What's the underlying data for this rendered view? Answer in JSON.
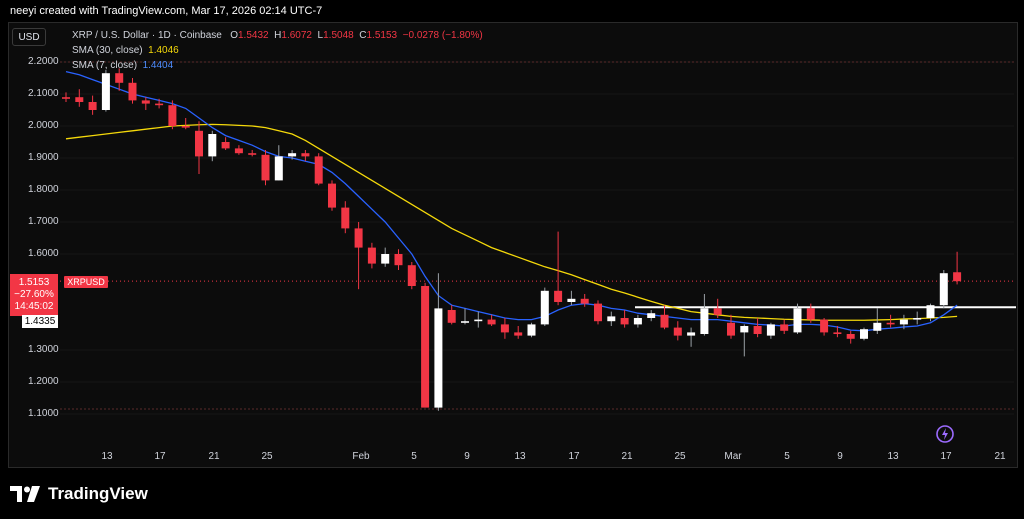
{
  "header": {
    "attribution": "neeyi created with TradingView.com, Mar 17, 2026 02:14 UTC-7"
  },
  "currency_button": "USD",
  "legend": {
    "symbol": "XRP / U.S. Dollar · 1D · Coinbase",
    "o_label": "O",
    "o": "1.5432",
    "h_label": "H",
    "h": "1.6072",
    "l_label": "L",
    "l": "1.5048",
    "c_label": "C",
    "c": "1.5153",
    "change": "−0.0278 (−1.80%)",
    "sma30_label": "SMA (30, close)",
    "sma30_value": "1.4046",
    "sma7_label": "SMA (7, close)",
    "sma7_value": "1.4404"
  },
  "price_tag": {
    "price": "1.5153",
    "pct": "−27.60%",
    "countdown": "14:45:02",
    "symbol": "XRPUSD"
  },
  "support_tag": "1.4335",
  "brand": "TradingView",
  "colors": {
    "up": "#ffffff",
    "down": "#f23645",
    "sma30": "#f5d90a",
    "sma7": "#2962ff",
    "support": "#ffffff"
  },
  "chart_data": {
    "type": "candlestick",
    "y_ticks": [
      "2.2000",
      "2.1000",
      "2.0000",
      "1.9000",
      "1.8000",
      "1.7000",
      "1.6000",
      "1.3000",
      "1.2000",
      "1.1000"
    ],
    "x_ticks": [
      "13",
      "17",
      "21",
      "25",
      "Feb",
      "5",
      "9",
      "13",
      "17",
      "21",
      "25",
      "Mar",
      "5",
      "9",
      "13",
      "17",
      "21"
    ],
    "ylim": [
      1.09,
      2.25
    ],
    "support_level": 1.4335,
    "candles": [
      {
        "o": 2.09,
        "h": 2.105,
        "l": 2.075,
        "c": 2.085
      },
      {
        "o": 2.09,
        "h": 2.115,
        "l": 2.06,
        "c": 2.075
      },
      {
        "o": 2.075,
        "h": 2.095,
        "l": 2.035,
        "c": 2.05
      },
      {
        "o": 2.05,
        "h": 2.175,
        "l": 2.045,
        "c": 2.165
      },
      {
        "o": 2.165,
        "h": 2.18,
        "l": 2.11,
        "c": 2.135
      },
      {
        "o": 2.135,
        "h": 2.15,
        "l": 2.07,
        "c": 2.08
      },
      {
        "o": 2.08,
        "h": 2.09,
        "l": 2.05,
        "c": 2.07
      },
      {
        "o": 2.07,
        "h": 2.085,
        "l": 2.055,
        "c": 2.065
      },
      {
        "o": 2.065,
        "h": 2.08,
        "l": 1.99,
        "c": 2.0
      },
      {
        "o": 2.0,
        "h": 2.025,
        "l": 1.99,
        "c": 1.995
      },
      {
        "o": 1.985,
        "h": 2.015,
        "l": 1.85,
        "c": 1.905
      },
      {
        "o": 1.905,
        "h": 1.985,
        "l": 1.89,
        "c": 1.975
      },
      {
        "o": 1.95,
        "h": 1.965,
        "l": 1.925,
        "c": 1.93
      },
      {
        "o": 1.93,
        "h": 1.94,
        "l": 1.91,
        "c": 1.915
      },
      {
        "o": 1.915,
        "h": 1.925,
        "l": 1.905,
        "c": 1.91
      },
      {
        "o": 1.91,
        "h": 1.925,
        "l": 1.815,
        "c": 1.83
      },
      {
        "o": 1.83,
        "h": 1.94,
        "l": 1.83,
        "c": 1.905
      },
      {
        "o": 1.905,
        "h": 1.925,
        "l": 1.895,
        "c": 1.915
      },
      {
        "o": 1.915,
        "h": 1.925,
        "l": 1.89,
        "c": 1.905
      },
      {
        "o": 1.905,
        "h": 1.915,
        "l": 1.815,
        "c": 1.82
      },
      {
        "o": 1.82,
        "h": 1.83,
        "l": 1.735,
        "c": 1.745
      },
      {
        "o": 1.745,
        "h": 1.765,
        "l": 1.665,
        "c": 1.68
      },
      {
        "o": 1.68,
        "h": 1.7,
        "l": 1.49,
        "c": 1.62
      },
      {
        "o": 1.62,
        "h": 1.635,
        "l": 1.555,
        "c": 1.57
      },
      {
        "o": 1.57,
        "h": 1.62,
        "l": 1.56,
        "c": 1.6
      },
      {
        "o": 1.6,
        "h": 1.615,
        "l": 1.55,
        "c": 1.565
      },
      {
        "o": 1.565,
        "h": 1.575,
        "l": 1.49,
        "c": 1.5
      },
      {
        "o": 1.5,
        "h": 1.51,
        "l": 1.12,
        "c": 1.12
      },
      {
        "o": 1.12,
        "h": 1.54,
        "l": 1.11,
        "c": 1.43
      },
      {
        "o": 1.425,
        "h": 1.44,
        "l": 1.38,
        "c": 1.385
      },
      {
        "o": 1.385,
        "h": 1.43,
        "l": 1.38,
        "c": 1.39
      },
      {
        "o": 1.39,
        "h": 1.42,
        "l": 1.37,
        "c": 1.395
      },
      {
        "o": 1.395,
        "h": 1.41,
        "l": 1.375,
        "c": 1.38
      },
      {
        "o": 1.38,
        "h": 1.4,
        "l": 1.335,
        "c": 1.355
      },
      {
        "o": 1.355,
        "h": 1.375,
        "l": 1.335,
        "c": 1.345
      },
      {
        "o": 1.345,
        "h": 1.385,
        "l": 1.34,
        "c": 1.38
      },
      {
        "o": 1.38,
        "h": 1.495,
        "l": 1.375,
        "c": 1.485
      },
      {
        "o": 1.485,
        "h": 1.67,
        "l": 1.44,
        "c": 1.45
      },
      {
        "o": 1.45,
        "h": 1.485,
        "l": 1.44,
        "c": 1.46
      },
      {
        "o": 1.46,
        "h": 1.475,
        "l": 1.435,
        "c": 1.445
      },
      {
        "o": 1.445,
        "h": 1.455,
        "l": 1.38,
        "c": 1.39
      },
      {
        "o": 1.39,
        "h": 1.42,
        "l": 1.375,
        "c": 1.405
      },
      {
        "o": 1.4,
        "h": 1.425,
        "l": 1.37,
        "c": 1.38
      },
      {
        "o": 1.38,
        "h": 1.41,
        "l": 1.37,
        "c": 1.4
      },
      {
        "o": 1.4,
        "h": 1.425,
        "l": 1.39,
        "c": 1.415
      },
      {
        "o": 1.41,
        "h": 1.44,
        "l": 1.365,
        "c": 1.37
      },
      {
        "o": 1.37,
        "h": 1.39,
        "l": 1.33,
        "c": 1.345
      },
      {
        "o": 1.345,
        "h": 1.37,
        "l": 1.31,
        "c": 1.355
      },
      {
        "o": 1.35,
        "h": 1.475,
        "l": 1.345,
        "c": 1.43
      },
      {
        "o": 1.43,
        "h": 1.46,
        "l": 1.4,
        "c": 1.41
      },
      {
        "o": 1.385,
        "h": 1.41,
        "l": 1.335,
        "c": 1.345
      },
      {
        "o": 1.355,
        "h": 1.38,
        "l": 1.28,
        "c": 1.375
      },
      {
        "o": 1.375,
        "h": 1.4,
        "l": 1.34,
        "c": 1.35
      },
      {
        "o": 1.345,
        "h": 1.385,
        "l": 1.335,
        "c": 1.38
      },
      {
        "o": 1.38,
        "h": 1.395,
        "l": 1.35,
        "c": 1.36
      },
      {
        "o": 1.355,
        "h": 1.445,
        "l": 1.35,
        "c": 1.43
      },
      {
        "o": 1.43,
        "h": 1.445,
        "l": 1.385,
        "c": 1.395
      },
      {
        "o": 1.395,
        "h": 1.4,
        "l": 1.345,
        "c": 1.355
      },
      {
        "o": 1.355,
        "h": 1.375,
        "l": 1.34,
        "c": 1.35
      },
      {
        "o": 1.35,
        "h": 1.36,
        "l": 1.32,
        "c": 1.335
      },
      {
        "o": 1.335,
        "h": 1.37,
        "l": 1.33,
        "c": 1.365
      },
      {
        "o": 1.36,
        "h": 1.43,
        "l": 1.35,
        "c": 1.385
      },
      {
        "o": 1.385,
        "h": 1.41,
        "l": 1.37,
        "c": 1.38
      },
      {
        "o": 1.38,
        "h": 1.41,
        "l": 1.365,
        "c": 1.395
      },
      {
        "o": 1.395,
        "h": 1.42,
        "l": 1.38,
        "c": 1.4
      },
      {
        "o": 1.4,
        "h": 1.445,
        "l": 1.39,
        "c": 1.44
      },
      {
        "o": 1.44,
        "h": 1.55,
        "l": 1.43,
        "c": 1.54
      },
      {
        "o": 1.543,
        "h": 1.607,
        "l": 1.505,
        "c": 1.515
      }
    ],
    "sma30": [
      1.96,
      1.965,
      1.97,
      1.975,
      1.98,
      1.985,
      1.99,
      1.995,
      2.0,
      2.002,
      2.004,
      2.005,
      2.004,
      2.002,
      2.0,
      1.995,
      1.985,
      1.975,
      1.955,
      1.93,
      1.905,
      1.88,
      1.855,
      1.83,
      1.805,
      1.78,
      1.755,
      1.73,
      1.705,
      1.68,
      1.66,
      1.64,
      1.62,
      1.605,
      1.59,
      1.575,
      1.56,
      1.548,
      1.535,
      1.52,
      1.505,
      1.49,
      1.478,
      1.465,
      1.452,
      1.44,
      1.43,
      1.42,
      1.415,
      1.41,
      1.405,
      1.402,
      1.4,
      1.398,
      1.396,
      1.395,
      1.394,
      1.393,
      1.393,
      1.393,
      1.393,
      1.394,
      1.395,
      1.397,
      1.398,
      1.4,
      1.402,
      1.405
    ],
    "sma7": [
      2.17,
      2.16,
      2.145,
      2.13,
      2.115,
      2.1,
      2.09,
      2.08,
      2.07,
      2.055,
      2.025,
      1.995,
      1.97,
      1.955,
      1.94,
      1.92,
      1.905,
      1.9,
      1.89,
      1.88,
      1.855,
      1.82,
      1.78,
      1.74,
      1.7,
      1.65,
      1.6,
      1.53,
      1.47,
      1.44,
      1.43,
      1.42,
      1.41,
      1.4,
      1.395,
      1.395,
      1.405,
      1.425,
      1.44,
      1.445,
      1.44,
      1.43,
      1.425,
      1.415,
      1.41,
      1.405,
      1.4,
      1.395,
      1.395,
      1.395,
      1.39,
      1.385,
      1.38,
      1.378,
      1.375,
      1.38,
      1.38,
      1.378,
      1.372,
      1.362,
      1.36,
      1.365,
      1.368,
      1.372,
      1.375,
      1.385,
      1.41,
      1.44
    ]
  }
}
